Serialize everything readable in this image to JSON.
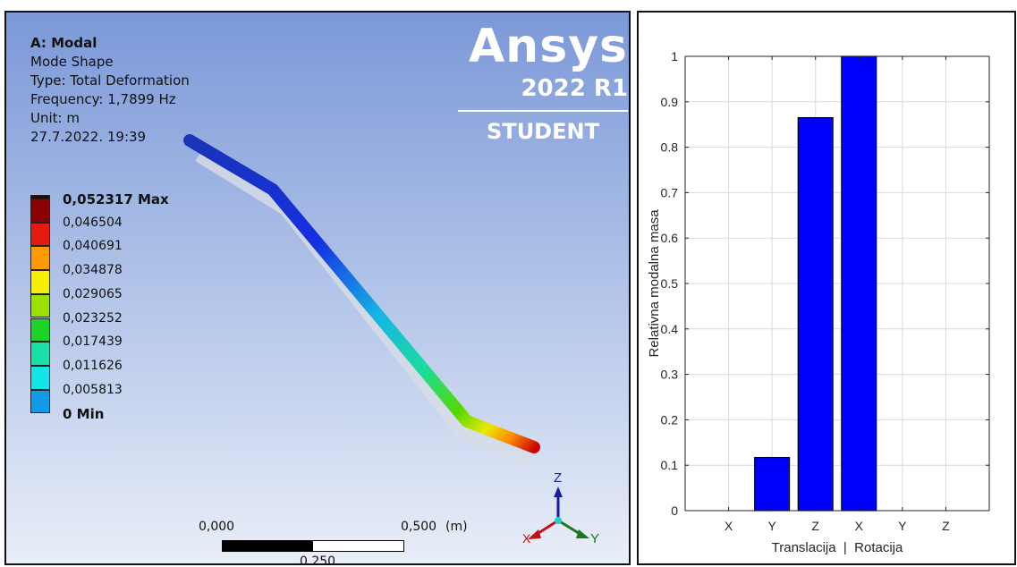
{
  "left_panel": {
    "info": {
      "title": "A: Modal",
      "line1": "Mode Shape",
      "line2": "Type: Total Deformation",
      "line3": "Frequency: 1,7899 Hz",
      "line4": "Unit: m",
      "line5": "27.7.2022. 19:39"
    },
    "brand": {
      "name": "Ansys",
      "version": "2022 R1",
      "edition": "STUDENT"
    },
    "legend": [
      {
        "label": "0,052317 Max",
        "color": "#8b0000",
        "bold": true
      },
      {
        "label": "0,046504",
        "color": "#e51b12"
      },
      {
        "label": "0,040691",
        "color": "#ff9a00"
      },
      {
        "label": "0,034878",
        "color": "#f4f000"
      },
      {
        "label": "0,029065",
        "color": "#9ce000"
      },
      {
        "label": "0,023252",
        "color": "#1cd32a"
      },
      {
        "label": "0,017439",
        "color": "#18e0a8"
      },
      {
        "label": "0,011626",
        "color": "#13e5e6"
      },
      {
        "label": "0,005813",
        "color": "#0f9be8"
      },
      {
        "label": "0 Min",
        "color": "#0c1ad6",
        "bold": true
      }
    ],
    "scale": {
      "start": "0,000",
      "mid": "0,250",
      "end": "0,500",
      "unit": "(m)"
    },
    "triad": {
      "z": "Z",
      "y": "Y",
      "x": "X"
    }
  },
  "chart_data": {
    "type": "bar",
    "categories": [
      "X",
      "Y",
      "Z",
      "X",
      "Y",
      "Z"
    ],
    "values": [
      0,
      0.117,
      0.865,
      1.0,
      0,
      0
    ],
    "xlabel": "Translacija  |  Rotacija",
    "ylabel": "Relativna modalna masa",
    "ylim": [
      0,
      1
    ],
    "yticks": [
      "0",
      "0.1",
      "0.2",
      "0.3",
      "0.4",
      "0.5",
      "0.6",
      "0.7",
      "0.8",
      "0.9",
      "1"
    ],
    "bar_color": "#0000ff",
    "grid": true
  }
}
